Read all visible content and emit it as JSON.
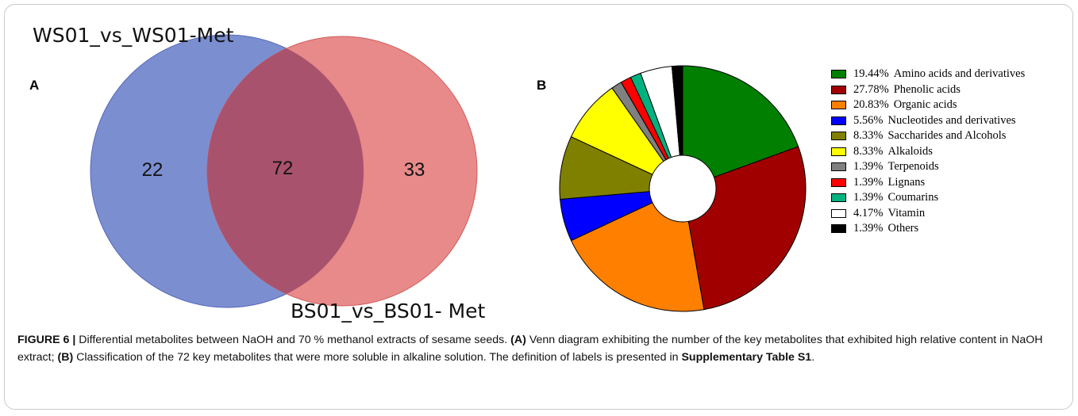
{
  "venn": {
    "panel_label": "A",
    "set_a_title": "WS01_vs_WS01-Met",
    "set_b_title": "BS01_vs_BS01- Met",
    "left_only": "22",
    "intersection": "72",
    "right_only": "33",
    "colors": {
      "left": "#7b8fd0",
      "right": "#e68080",
      "overlap": "#a8526e"
    }
  },
  "pie": {
    "panel_label": "B"
  },
  "chart_data": {
    "type": "pie",
    "style": "donut",
    "labels": [
      "Amino acids and derivatives",
      "Phenolic acids",
      "Organic acids",
      "Nucleotides and derivatives",
      "Saccharides and Alcohols",
      "Alkaloids",
      "Terpenoids",
      "Lignans",
      "Coumarins",
      "Vitamin",
      "Others"
    ],
    "percent_labels": [
      "19.44%",
      "27.78%",
      "20.83%",
      "5.56%",
      "8.33%",
      "8.33%",
      "1.39%",
      "1.39%",
      "1.39%",
      "4.17%",
      "1.39%"
    ],
    "values": [
      19.44,
      27.78,
      20.83,
      5.56,
      8.33,
      8.33,
      1.39,
      1.39,
      1.39,
      4.17,
      1.39
    ],
    "colors": [
      "#007f00",
      "#a00000",
      "#ff8000",
      "#0000ff",
      "#808000",
      "#ffff00",
      "#808080",
      "#ff0000",
      "#00b27f",
      "#ffffff",
      "#000000"
    ],
    "legend_position": "right"
  },
  "caption": {
    "figure_label": "FIGURE 6 |",
    "text_1": " Differential metabolites between NaOH and 70 % methanol extracts of sesame seeds. ",
    "part_a": "(A)",
    "text_2": " Venn diagram exhibiting the number of the key metabolites that exhibited high relative content in NaOH extract; ",
    "part_b": "(B)",
    "text_3": " Classification of the 72 key metabolites that were more soluble in alkaline solution. The definition of labels is presented in ",
    "table_ref": "Supplementary Table S1",
    "text_4": "."
  }
}
